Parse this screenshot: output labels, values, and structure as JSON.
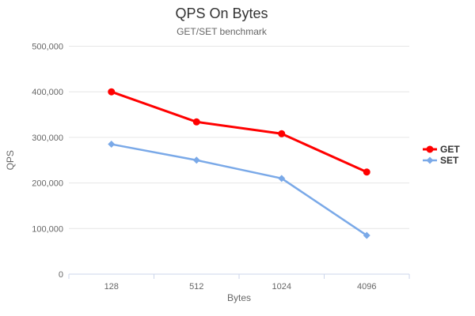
{
  "chart_data": {
    "type": "line",
    "title": "QPS On Bytes",
    "subtitle": "GET/SET benchmark",
    "xlabel": "Bytes",
    "ylabel": "QPS",
    "categories": [
      "128",
      "512",
      "1024",
      "4096"
    ],
    "series": [
      {
        "name": "GET",
        "color": "#ff0000",
        "marker": "circle",
        "values": [
          400000,
          334000,
          308000,
          224000
        ]
      },
      {
        "name": "SET",
        "color": "#7aa9e8",
        "marker": "diamond",
        "values": [
          285000,
          250000,
          210000,
          85000
        ]
      }
    ],
    "ylim": [
      0,
      500000
    ],
    "y_ticks": [
      {
        "value": 0,
        "label": "0"
      },
      {
        "value": 100000,
        "label": "100,000"
      },
      {
        "value": 200000,
        "label": "200,000"
      },
      {
        "value": 300000,
        "label": "300,000"
      },
      {
        "value": 400000,
        "label": "400,000"
      },
      {
        "value": 500000,
        "label": "500,000"
      }
    ],
    "grid": true,
    "legend_position": "right"
  },
  "colors": {
    "background": "#ffffff",
    "title": "#333333",
    "subtitle": "#666666",
    "axis_text": "#666666",
    "grid_line": "#e6e6e6",
    "axis_line": "#ccd6eb",
    "legend_text": "#333333"
  }
}
